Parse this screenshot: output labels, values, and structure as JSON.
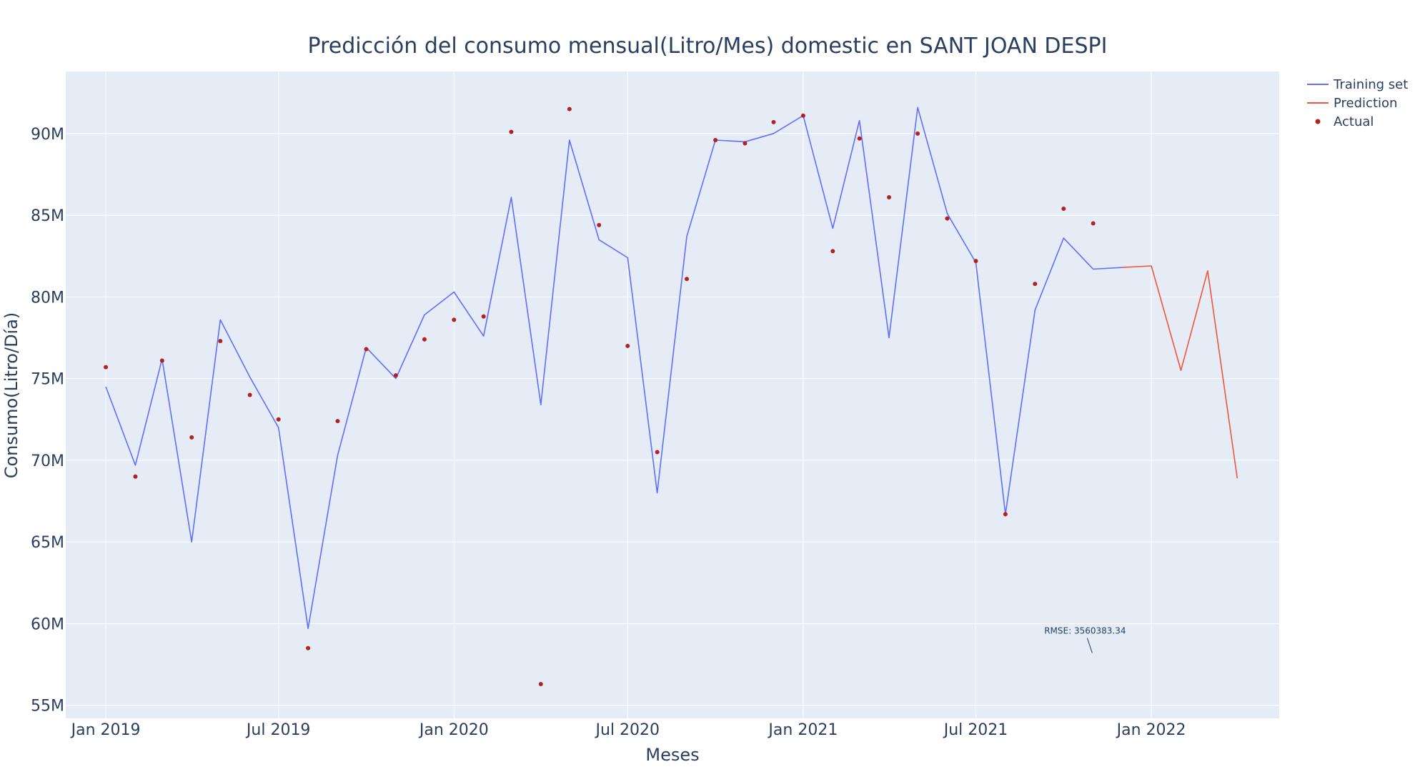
{
  "chart_data": {
    "type": "line",
    "title": "Predicción del consumo mensual(Litro/Mes) domestic en SANT JOAN DESPI",
    "xlabel": "Meses",
    "ylabel": "Consumo(Litro/Día)",
    "xlim": [
      "2018-11-20",
      "2022-05-15"
    ],
    "ylim": [
      54200000,
      93800000
    ],
    "x_ticks": [
      {
        "date": "2019-01-01",
        "label": "Jan 2019"
      },
      {
        "date": "2019-07-01",
        "label": "Jul 2019"
      },
      {
        "date": "2020-01-01",
        "label": "Jan 2020"
      },
      {
        "date": "2020-07-01",
        "label": "Jul 2020"
      },
      {
        "date": "2021-01-01",
        "label": "Jan 2021"
      },
      {
        "date": "2021-07-01",
        "label": "Jul 2021"
      },
      {
        "date": "2022-01-01",
        "label": "Jan 2022"
      }
    ],
    "y_ticks": [
      {
        "value": 55000000,
        "label": "55M"
      },
      {
        "value": 60000000,
        "label": "60M"
      },
      {
        "value": 65000000,
        "label": "65M"
      },
      {
        "value": 70000000,
        "label": "70M"
      },
      {
        "value": 75000000,
        "label": "75M"
      },
      {
        "value": 80000000,
        "label": "80M"
      },
      {
        "value": 85000000,
        "label": "85M"
      },
      {
        "value": 90000000,
        "label": "90M"
      }
    ],
    "grid": true,
    "legend_position": "top-right",
    "series": [
      {
        "name": "Training set",
        "mode": "lines",
        "color": "#636efa",
        "x": [
          "2019-01-01",
          "2019-02-01",
          "2019-03-01",
          "2019-04-01",
          "2019-05-01",
          "2019-06-01",
          "2019-07-01",
          "2019-08-01",
          "2019-09-01",
          "2019-10-01",
          "2019-11-01",
          "2019-12-01",
          "2020-01-01",
          "2020-02-01",
          "2020-03-01",
          "2020-04-01",
          "2020-05-01",
          "2020-06-01",
          "2020-07-01",
          "2020-08-01",
          "2020-09-01",
          "2020-10-01",
          "2020-11-01",
          "2020-12-01",
          "2021-01-01",
          "2021-02-01",
          "2021-03-01",
          "2021-04-01",
          "2021-05-01",
          "2021-06-01",
          "2021-07-01",
          "2021-08-01",
          "2021-09-01",
          "2021-10-01",
          "2021-11-01",
          "2021-12-01"
        ],
        "y": [
          74500000,
          69700000,
          76200000,
          65000000,
          78600000,
          75100000,
          72000000,
          59700000,
          70300000,
          76900000,
          75000000,
          78900000,
          80300000,
          77600000,
          86100000,
          73400000,
          89600000,
          83500000,
          82400000,
          68000000,
          83700000,
          89600000,
          89500000,
          90000000,
          91100000,
          84200000,
          90800000,
          77500000,
          91600000,
          85100000,
          82100000,
          66700000,
          79200000,
          83600000,
          81700000,
          81800000
        ]
      },
      {
        "name": "Prediction",
        "mode": "lines",
        "color": "#ef553b",
        "x": [
          "2021-12-01",
          "2022-01-01",
          "2022-02-01",
          "2022-03-01",
          "2022-04-01"
        ],
        "y": [
          81800000,
          81900000,
          75500000,
          81600000,
          68900000
        ]
      },
      {
        "name": "Actual",
        "mode": "markers",
        "color": "#b22222",
        "x": [
          "2019-01-01",
          "2019-02-01",
          "2019-03-01",
          "2019-04-01",
          "2019-05-01",
          "2019-06-01",
          "2019-07-01",
          "2019-08-01",
          "2019-09-01",
          "2019-10-01",
          "2019-11-01",
          "2019-12-01",
          "2020-01-01",
          "2020-02-01",
          "2020-03-01",
          "2020-04-01",
          "2020-05-01",
          "2020-06-01",
          "2020-07-01",
          "2020-08-01",
          "2020-09-01",
          "2020-10-01",
          "2020-11-01",
          "2020-12-01",
          "2021-01-01",
          "2021-02-01",
          "2021-03-01",
          "2021-04-01",
          "2021-05-01",
          "2021-06-01",
          "2021-07-01",
          "2021-08-01",
          "2021-09-01",
          "2021-10-01",
          "2021-11-01"
        ],
        "y": [
          75700000,
          69000000,
          76100000,
          71400000,
          77300000,
          74000000,
          72500000,
          58500000,
          72400000,
          76800000,
          75200000,
          77400000,
          78600000,
          78800000,
          90100000,
          56300000,
          91500000,
          84400000,
          77000000,
          70500000,
          81100000,
          89600000,
          89400000,
          90700000,
          91100000,
          82800000,
          89700000,
          86100000,
          90000000,
          84800000,
          82200000,
          66700000,
          80800000,
          85400000,
          84500000
        ]
      }
    ],
    "annotations": [
      {
        "text": "RMSE: 3560383.34",
        "x": "2021-10-31",
        "y": 58200000
      }
    ]
  }
}
